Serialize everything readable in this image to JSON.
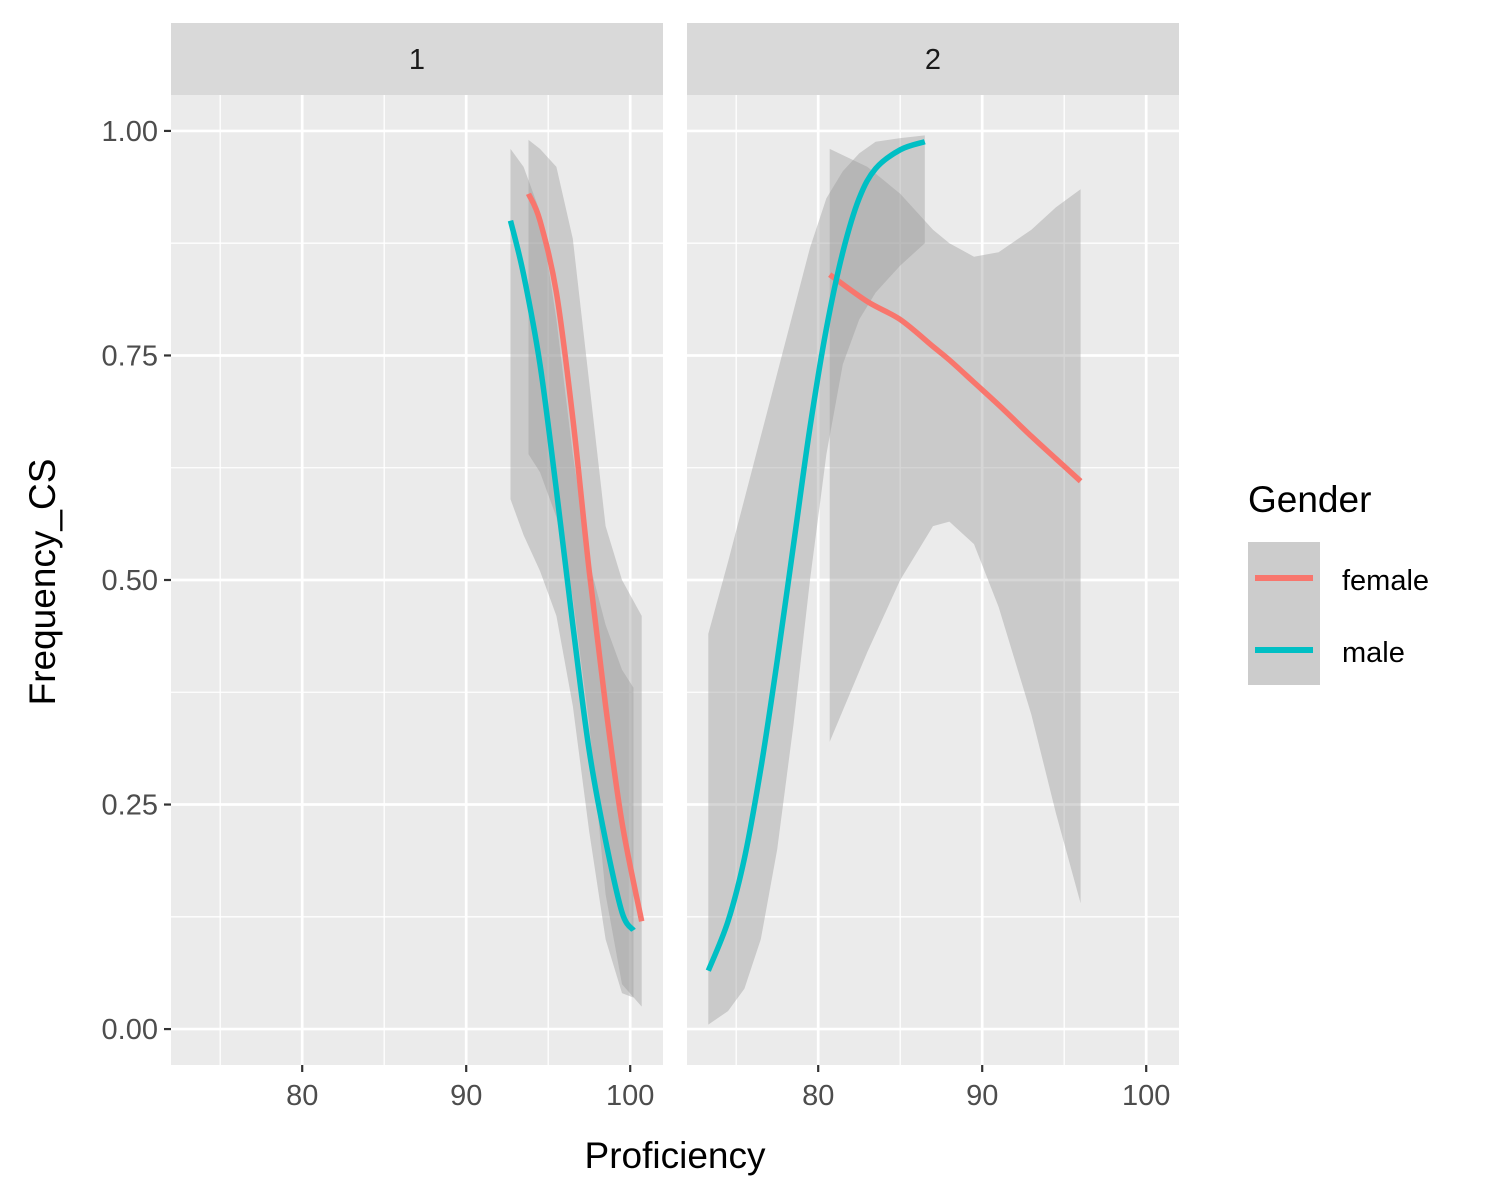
{
  "chart_data": {
    "type": "line",
    "xlabel": "Proficiency",
    "ylabel": "Frequency_CS",
    "xlim": [
      72,
      102
    ],
    "ylim": [
      -0.04,
      1.04
    ],
    "x_ticks": [
      80,
      90,
      100
    ],
    "x_tick_labels": [
      "80",
      "90",
      "100"
    ],
    "y_ticks": [
      0,
      0.25,
      0.5,
      0.75,
      1.0
    ],
    "y_tick_labels": [
      "0.00",
      "0.25",
      "0.50",
      "0.75",
      "1.00"
    ],
    "grid": true,
    "legend": {
      "title": "Gender",
      "position": "right",
      "entries": [
        {
          "name": "female",
          "color": "#F8766D"
        },
        {
          "name": "male",
          "color": "#00BFC4"
        }
      ]
    },
    "panels": [
      {
        "label": "1",
        "series": [
          {
            "name": "female",
            "color": "#F8766D",
            "points": [
              {
                "x": 93.8,
                "y": 0.93,
                "lo": 0.64,
                "hi": 0.99
              },
              {
                "x": 94.5,
                "y": 0.9,
                "lo": 0.62,
                "hi": 0.98
              },
              {
                "x": 95.5,
                "y": 0.82,
                "lo": 0.57,
                "hi": 0.96
              },
              {
                "x": 96.5,
                "y": 0.68,
                "lo": 0.48,
                "hi": 0.88
              },
              {
                "x": 97.5,
                "y": 0.51,
                "lo": 0.34,
                "hi": 0.72
              },
              {
                "x": 98.5,
                "y": 0.36,
                "lo": 0.15,
                "hi": 0.56
              },
              {
                "x": 99.5,
                "y": 0.23,
                "lo": 0.05,
                "hi": 0.5
              },
              {
                "x": 100.7,
                "y": 0.12,
                "lo": 0.025,
                "hi": 0.46
              }
            ]
          },
          {
            "name": "male",
            "color": "#00BFC4",
            "points": [
              {
                "x": 92.7,
                "y": 0.9,
                "lo": 0.59,
                "hi": 0.98
              },
              {
                "x": 93.5,
                "y": 0.84,
                "lo": 0.55,
                "hi": 0.96
              },
              {
                "x": 94.5,
                "y": 0.74,
                "lo": 0.51,
                "hi": 0.91
              },
              {
                "x": 95.5,
                "y": 0.6,
                "lo": 0.46,
                "hi": 0.79
              },
              {
                "x": 96.5,
                "y": 0.45,
                "lo": 0.36,
                "hi": 0.64
              },
              {
                "x": 97.5,
                "y": 0.31,
                "lo": 0.22,
                "hi": 0.52
              },
              {
                "x": 98.5,
                "y": 0.21,
                "lo": 0.1,
                "hi": 0.45
              },
              {
                "x": 99.5,
                "y": 0.13,
                "lo": 0.04,
                "hi": 0.4
              },
              {
                "x": 100.2,
                "y": 0.11,
                "lo": 0.035,
                "hi": 0.38
              }
            ]
          }
        ]
      },
      {
        "label": "2",
        "series": [
          {
            "name": "female",
            "color": "#F8766D",
            "points": [
              {
                "x": 80.7,
                "y": 0.84,
                "lo": 0.32,
                "hi": 0.98
              },
              {
                "x": 83,
                "y": 0.81,
                "lo": 0.42,
                "hi": 0.96
              },
              {
                "x": 85,
                "y": 0.79,
                "lo": 0.5,
                "hi": 0.93
              },
              {
                "x": 87,
                "y": 0.76,
                "lo": 0.56,
                "hi": 0.89
              },
              {
                "x": 88,
                "y": 0.745,
                "lo": 0.565,
                "hi": 0.875
              },
              {
                "x": 89.5,
                "y": 0.72,
                "lo": 0.54,
                "hi": 0.86
              },
              {
                "x": 91,
                "y": 0.695,
                "lo": 0.47,
                "hi": 0.865
              },
              {
                "x": 93,
                "y": 0.66,
                "lo": 0.35,
                "hi": 0.89
              },
              {
                "x": 94.5,
                "y": 0.635,
                "lo": 0.24,
                "hi": 0.915
              },
              {
                "x": 96,
                "y": 0.61,
                "lo": 0.14,
                "hi": 0.935
              }
            ]
          },
          {
            "name": "male",
            "color": "#00BFC4",
            "points": [
              {
                "x": 73.3,
                "y": 0.065,
                "lo": 0.005,
                "hi": 0.44
              },
              {
                "x": 74.5,
                "y": 0.12,
                "lo": 0.02,
                "hi": 0.52
              },
              {
                "x": 75.5,
                "y": 0.19,
                "lo": 0.045,
                "hi": 0.59
              },
              {
                "x": 76.5,
                "y": 0.29,
                "lo": 0.1,
                "hi": 0.66
              },
              {
                "x": 77.5,
                "y": 0.41,
                "lo": 0.2,
                "hi": 0.73
              },
              {
                "x": 78.5,
                "y": 0.54,
                "lo": 0.34,
                "hi": 0.8
              },
              {
                "x": 79.5,
                "y": 0.67,
                "lo": 0.5,
                "hi": 0.87
              },
              {
                "x": 80.5,
                "y": 0.78,
                "lo": 0.64,
                "hi": 0.925
              },
              {
                "x": 81.5,
                "y": 0.865,
                "lo": 0.74,
                "hi": 0.955
              },
              {
                "x": 82.5,
                "y": 0.925,
                "lo": 0.79,
                "hi": 0.975
              },
              {
                "x": 83.5,
                "y": 0.958,
                "lo": 0.82,
                "hi": 0.988
              },
              {
                "x": 85,
                "y": 0.979,
                "lo": 0.85,
                "hi": 0.992
              },
              {
                "x": 86.5,
                "y": 0.988,
                "lo": 0.875,
                "hi": 0.995
              }
            ]
          }
        ]
      }
    ]
  }
}
